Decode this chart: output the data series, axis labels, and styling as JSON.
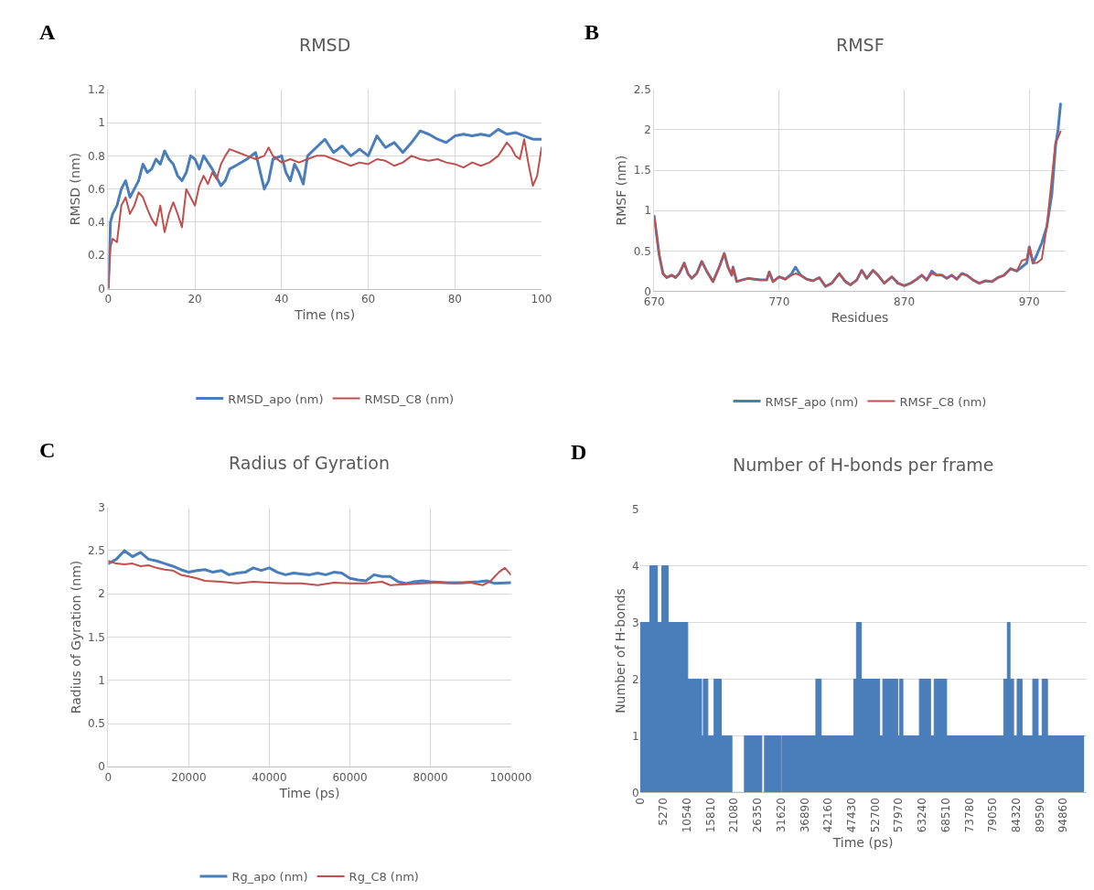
{
  "chart_data": [
    {
      "type": "line",
      "title": "RMSD",
      "xlabel": "Time (ns)",
      "ylabel": "RMSD (nm)",
      "annotations": [
        "A"
      ],
      "xlim": [
        0,
        100
      ],
      "xticks": [
        0,
        20,
        40,
        60,
        80,
        100
      ],
      "ylim": [
        0,
        1.2
      ],
      "yticks": [
        0,
        0.2,
        0.4,
        0.6,
        0.8,
        1,
        1.2
      ],
      "grid": true,
      "legend": "bottom",
      "series": [
        {
          "name": "RMSD_apo (nm)",
          "color": "#4a7ebb",
          "x": [
            0,
            0.5,
            1,
            2,
            3,
            4,
            5,
            6,
            7,
            8,
            9,
            10,
            11,
            12,
            13,
            14,
            15,
            16,
            17,
            18,
            19,
            20,
            21,
            22,
            24,
            26,
            27,
            28,
            30,
            32,
            34,
            36,
            37,
            38,
            40,
            41,
            42,
            43,
            44,
            45,
            46,
            48,
            50,
            52,
            54,
            56,
            58,
            60,
            62,
            64,
            66,
            68,
            70,
            72,
            74,
            76,
            78,
            80,
            82,
            84,
            86,
            88,
            90,
            92,
            94,
            96,
            98,
            100
          ],
          "values": [
            0,
            0.4,
            0.45,
            0.5,
            0.6,
            0.65,
            0.55,
            0.6,
            0.65,
            0.75,
            0.7,
            0.72,
            0.78,
            0.75,
            0.83,
            0.78,
            0.75,
            0.68,
            0.65,
            0.7,
            0.8,
            0.78,
            0.72,
            0.8,
            0.72,
            0.62,
            0.65,
            0.72,
            0.75,
            0.78,
            0.82,
            0.6,
            0.65,
            0.78,
            0.8,
            0.7,
            0.65,
            0.75,
            0.7,
            0.63,
            0.8,
            0.85,
            0.9,
            0.82,
            0.86,
            0.8,
            0.84,
            0.8,
            0.92,
            0.85,
            0.88,
            0.82,
            0.88,
            0.95,
            0.93,
            0.9,
            0.88,
            0.92,
            0.93,
            0.92,
            0.93,
            0.92,
            0.96,
            0.93,
            0.94,
            0.92,
            0.9,
            0.9
          ]
        },
        {
          "name": "RMSD_C8 (nm)",
          "color": "#c0504d",
          "x": [
            0,
            0.5,
            1,
            2,
            3,
            4,
            5,
            6,
            7,
            8,
            9,
            10,
            11,
            12,
            13,
            14,
            15,
            16,
            17,
            18,
            19,
            20,
            21,
            22,
            23,
            24,
            25,
            26,
            27,
            28,
            30,
            32,
            34,
            36,
            37,
            38,
            40,
            42,
            44,
            46,
            48,
            50,
            52,
            54,
            56,
            58,
            60,
            62,
            64,
            66,
            68,
            70,
            72,
            74,
            76,
            78,
            80,
            82,
            84,
            86,
            88,
            90,
            92,
            93,
            94,
            95,
            96,
            97,
            98,
            99,
            100
          ],
          "values": [
            0,
            0.25,
            0.3,
            0.28,
            0.5,
            0.55,
            0.45,
            0.5,
            0.58,
            0.55,
            0.48,
            0.42,
            0.38,
            0.5,
            0.34,
            0.45,
            0.52,
            0.45,
            0.37,
            0.6,
            0.55,
            0.5,
            0.62,
            0.68,
            0.63,
            0.7,
            0.66,
            0.75,
            0.8,
            0.84,
            0.82,
            0.8,
            0.78,
            0.8,
            0.85,
            0.8,
            0.76,
            0.78,
            0.76,
            0.78,
            0.8,
            0.8,
            0.78,
            0.76,
            0.74,
            0.76,
            0.75,
            0.78,
            0.77,
            0.74,
            0.76,
            0.8,
            0.78,
            0.77,
            0.78,
            0.76,
            0.75,
            0.73,
            0.76,
            0.74,
            0.76,
            0.8,
            0.88,
            0.85,
            0.8,
            0.78,
            0.9,
            0.75,
            0.62,
            0.68,
            0.85
          ]
        }
      ]
    },
    {
      "type": "line",
      "title": "RMSF",
      "xlabel": "Residues",
      "ylabel": "RMSF (nm)",
      "annotations": [
        "B"
      ],
      "xlim": [
        670,
        999
      ],
      "xticks": [
        670,
        770,
        870,
        970
      ],
      "ylim": [
        0,
        2.5
      ],
      "yticks": [
        0,
        0.5,
        1,
        1.5,
        2,
        2.5
      ],
      "grid": true,
      "legend": "bottom",
      "series": [
        {
          "name": "RMSF_apo (nm)",
          "color": "#4a7ebb",
          "x": [
            670,
            674,
            677,
            680,
            684,
            687,
            690,
            694,
            697,
            700,
            704,
            708,
            712,
            717,
            722,
            726,
            729,
            732,
            733,
            736,
            740,
            745,
            750,
            755,
            760,
            762,
            765,
            770,
            775,
            780,
            783,
            787,
            792,
            797,
            802,
            807,
            812,
            818,
            823,
            827,
            832,
            836,
            840,
            845,
            849,
            854,
            860,
            865,
            870,
            875,
            880,
            884,
            888,
            892,
            896,
            900,
            904,
            908,
            912,
            916,
            920,
            925,
            930,
            935,
            940,
            945,
            950,
            955,
            960,
            964,
            968,
            970,
            973,
            976,
            980,
            984,
            988,
            991,
            993,
            995
          ],
          "values": [
            0.93,
            0.45,
            0.22,
            0.17,
            0.2,
            0.17,
            0.22,
            0.35,
            0.22,
            0.16,
            0.22,
            0.37,
            0.25,
            0.12,
            0.3,
            0.47,
            0.3,
            0.2,
            0.3,
            0.12,
            0.14,
            0.16,
            0.15,
            0.14,
            0.14,
            0.24,
            0.12,
            0.18,
            0.15,
            0.22,
            0.3,
            0.2,
            0.15,
            0.13,
            0.17,
            0.06,
            0.1,
            0.22,
            0.12,
            0.08,
            0.14,
            0.26,
            0.16,
            0.26,
            0.2,
            0.1,
            0.18,
            0.1,
            0.07,
            0.1,
            0.15,
            0.2,
            0.14,
            0.25,
            0.2,
            0.2,
            0.16,
            0.2,
            0.15,
            0.22,
            0.2,
            0.14,
            0.1,
            0.13,
            0.12,
            0.17,
            0.2,
            0.28,
            0.25,
            0.3,
            0.35,
            0.55,
            0.35,
            0.45,
            0.6,
            0.8,
            1.2,
            1.8,
            2.0,
            2.32
          ]
        },
        {
          "name": "RMSF_C8 (nm)",
          "color": "#c0504d",
          "x": [
            670,
            674,
            677,
            680,
            684,
            687,
            690,
            694,
            697,
            700,
            704,
            708,
            712,
            717,
            722,
            726,
            729,
            732,
            733,
            736,
            740,
            745,
            750,
            755,
            760,
            762,
            765,
            770,
            775,
            780,
            783,
            787,
            792,
            797,
            802,
            807,
            812,
            818,
            823,
            827,
            832,
            836,
            840,
            845,
            849,
            854,
            860,
            865,
            870,
            875,
            880,
            884,
            888,
            892,
            896,
            900,
            904,
            908,
            912,
            916,
            920,
            925,
            930,
            935,
            940,
            945,
            950,
            955,
            960,
            964,
            968,
            970,
            973,
            976,
            980,
            984,
            988,
            991,
            993,
            995
          ],
          "values": [
            0.93,
            0.45,
            0.22,
            0.17,
            0.2,
            0.17,
            0.22,
            0.35,
            0.22,
            0.16,
            0.22,
            0.37,
            0.25,
            0.12,
            0.3,
            0.47,
            0.3,
            0.2,
            0.3,
            0.12,
            0.14,
            0.16,
            0.15,
            0.14,
            0.14,
            0.24,
            0.12,
            0.18,
            0.15,
            0.2,
            0.22,
            0.2,
            0.15,
            0.13,
            0.17,
            0.06,
            0.1,
            0.22,
            0.12,
            0.08,
            0.14,
            0.26,
            0.16,
            0.26,
            0.2,
            0.1,
            0.18,
            0.1,
            0.07,
            0.1,
            0.15,
            0.2,
            0.14,
            0.22,
            0.2,
            0.2,
            0.16,
            0.2,
            0.15,
            0.22,
            0.2,
            0.14,
            0.1,
            0.13,
            0.12,
            0.17,
            0.2,
            0.28,
            0.25,
            0.38,
            0.4,
            0.55,
            0.35,
            0.35,
            0.4,
            0.8,
            1.4,
            1.85,
            1.9,
            1.98
          ]
        }
      ]
    },
    {
      "type": "line",
      "title": "Radius of Gyration",
      "xlabel": "Time (ps)",
      "ylabel": "Radius of Gyration (nm)",
      "annotations": [
        "C"
      ],
      "xlim": [
        0,
        100000
      ],
      "xticks": [
        0,
        20000,
        40000,
        60000,
        80000,
        100000
      ],
      "ylim": [
        0,
        3
      ],
      "yticks": [
        0,
        0.5,
        1,
        1.5,
        2,
        2.5,
        3
      ],
      "grid": true,
      "legend": "bottom",
      "series": [
        {
          "name": "Rg_apo (nm)",
          "color": "#4a7ebb",
          "x": [
            0,
            2000,
            4000,
            6000,
            8000,
            10000,
            12000,
            14000,
            16000,
            18000,
            20000,
            22000,
            24000,
            26000,
            28000,
            30000,
            32000,
            34000,
            36000,
            38000,
            40000,
            42000,
            44000,
            46000,
            48000,
            50000,
            52000,
            54000,
            56000,
            58000,
            60000,
            62000,
            64000,
            66000,
            68000,
            70000,
            72000,
            74000,
            76000,
            78000,
            80000,
            84000,
            88000,
            92000,
            94000,
            96000,
            100000
          ],
          "values": [
            2.35,
            2.4,
            2.5,
            2.43,
            2.48,
            2.4,
            2.38,
            2.35,
            2.32,
            2.28,
            2.25,
            2.27,
            2.28,
            2.25,
            2.27,
            2.22,
            2.24,
            2.25,
            2.3,
            2.27,
            2.3,
            2.25,
            2.22,
            2.24,
            2.23,
            2.22,
            2.24,
            2.22,
            2.25,
            2.24,
            2.18,
            2.16,
            2.15,
            2.22,
            2.2,
            2.2,
            2.14,
            2.12,
            2.14,
            2.15,
            2.14,
            2.13,
            2.13,
            2.14,
            2.15,
            2.12,
            2.13
          ]
        },
        {
          "name": "Rg_C8 (nm)",
          "color": "#c0504d",
          "x": [
            0,
            2000,
            4000,
            6000,
            8000,
            10000,
            12000,
            14000,
            16000,
            18000,
            20000,
            22000,
            24000,
            28000,
            32000,
            36000,
            40000,
            44000,
            48000,
            52000,
            56000,
            60000,
            64000,
            68000,
            70000,
            74000,
            78000,
            82000,
            86000,
            90000,
            93000,
            95000,
            97000,
            98500,
            100000
          ],
          "values": [
            2.38,
            2.35,
            2.34,
            2.35,
            2.32,
            2.33,
            2.3,
            2.28,
            2.27,
            2.22,
            2.2,
            2.18,
            2.15,
            2.14,
            2.12,
            2.14,
            2.13,
            2.12,
            2.12,
            2.1,
            2.13,
            2.12,
            2.12,
            2.14,
            2.1,
            2.11,
            2.12,
            2.13,
            2.12,
            2.13,
            2.1,
            2.15,
            2.25,
            2.3,
            2.22
          ]
        }
      ]
    },
    {
      "type": "area",
      "title": "Number of H-bonds per frame",
      "xlabel": "Time (ps)",
      "ylabel": "Number of H-bonds",
      "annotations": [
        "D"
      ],
      "xlim": [
        0,
        100000
      ],
      "xticks": [
        0,
        5270,
        10540,
        15810,
        21080,
        26350,
        31620,
        36890,
        42160,
        47430,
        52700,
        57970,
        63240,
        68510,
        73780,
        79050,
        84320,
        89590,
        94860
      ],
      "ylim": [
        0,
        5
      ],
      "yticks": [
        0,
        1,
        2,
        3,
        4,
        5
      ],
      "grid": "y",
      "series": [
        {
          "color": "#4a7ebb",
          "x": [
            0,
            2200,
            2200,
            3900,
            3900,
            4900,
            4900,
            6300,
            6300,
            10700,
            10700,
            13800,
            13800,
            14200,
            14200,
            15200,
            15200,
            16600,
            16600,
            18200,
            18200,
            20600,
            20600,
            23400,
            23400,
            27300,
            27300,
            27900,
            27900,
            31600,
            31600,
            31800,
            31800,
            39400,
            39400,
            40600,
            40600,
            47900,
            47900,
            48500,
            48500,
            49600,
            49600,
            53700,
            53700,
            54400,
            54400,
            57800,
            57800,
            58200,
            58200,
            58900,
            58900,
            62600,
            62600,
            65100,
            65100,
            65900,
            65900,
            68700,
            68700,
            81500,
            81500,
            82300,
            82300,
            82900,
            82900,
            83700,
            83700,
            84500,
            84500,
            85600,
            85600,
            88000,
            88000,
            89200,
            89200,
            90100,
            90100,
            91300,
            91300,
            99500
          ],
          "values": [
            3,
            3,
            4,
            4,
            3,
            3,
            4,
            4,
            3,
            3,
            2,
            2,
            1,
            1,
            2,
            2,
            1,
            1,
            2,
            2,
            1,
            1,
            0,
            0,
            1,
            1,
            0,
            0,
            1,
            1,
            0,
            0,
            1,
            1,
            2,
            2,
            1,
            1,
            2,
            2,
            3,
            3,
            2,
            2,
            1,
            1,
            2,
            2,
            1,
            1,
            2,
            2,
            1,
            1,
            2,
            2,
            1,
            1,
            2,
            2,
            1,
            1,
            2,
            2,
            3,
            3,
            2,
            2,
            1,
            1,
            2,
            2,
            1,
            1,
            2,
            2,
            1,
            1,
            2,
            2,
            1,
            1
          ]
        }
      ]
    }
  ]
}
